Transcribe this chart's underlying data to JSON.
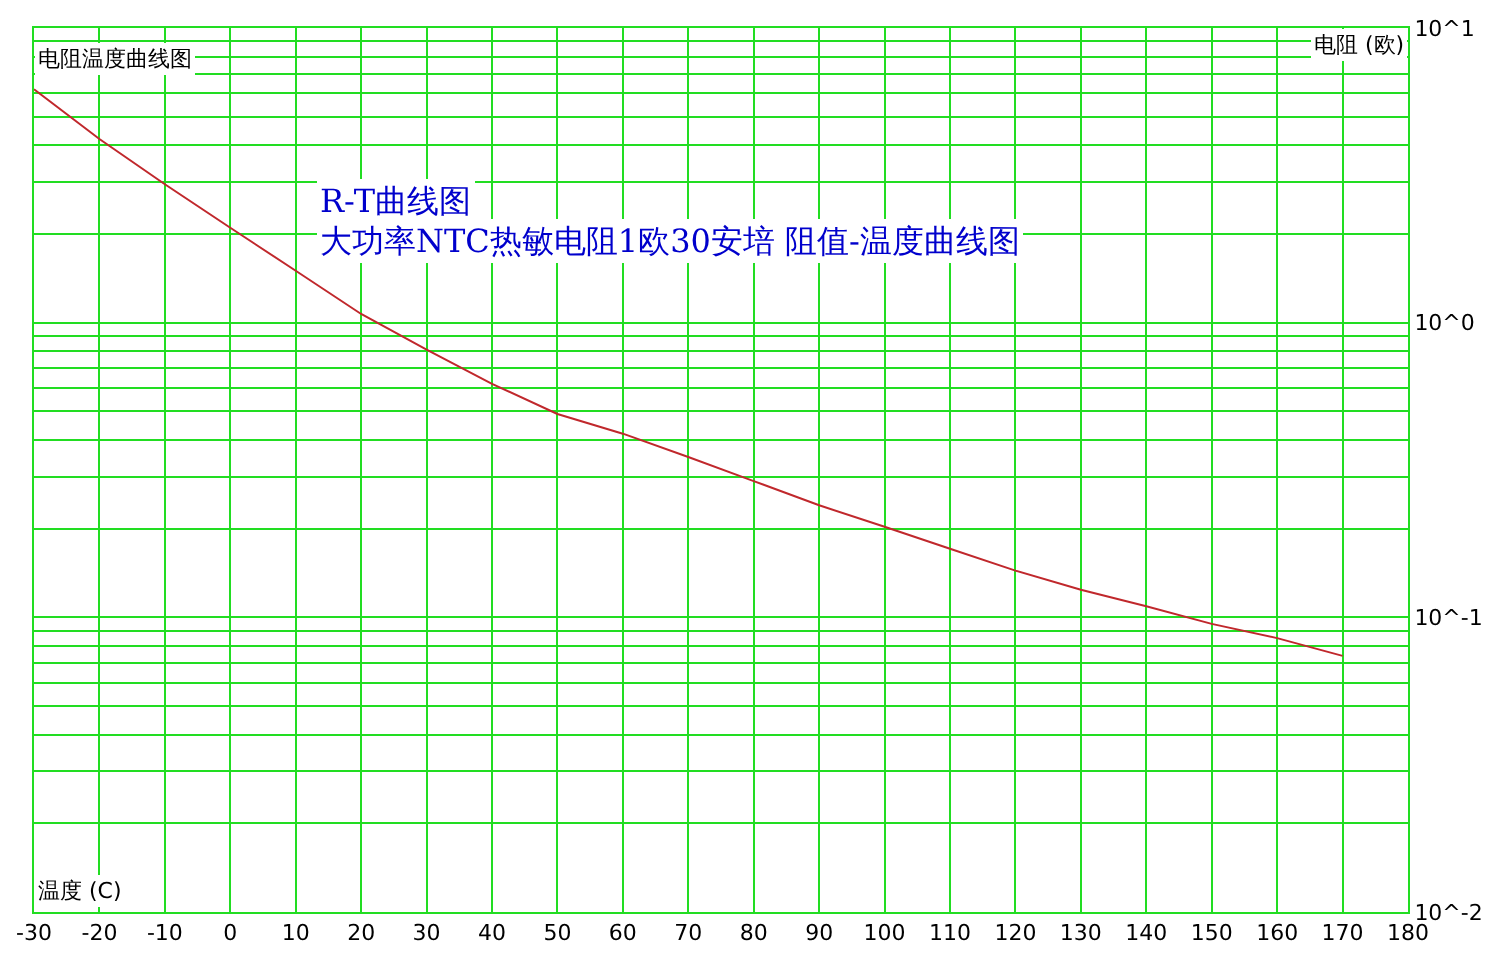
{
  "chart_data": {
    "type": "line",
    "title": "电阻温度曲线图",
    "xlabel": "温度 (C)",
    "ylabel": "电阻 (欧)",
    "annotations": [
      "R-T曲线图",
      "大功率NTC热敏电阻1欧30安培 阻值-温度曲线图"
    ],
    "x": [
      -30,
      -20,
      -10,
      0,
      10,
      20,
      30,
      40,
      50,
      60,
      70,
      80,
      90,
      100,
      110,
      120,
      130,
      140,
      150,
      160,
      170
    ],
    "series": [
      {
        "color": "#c0282c",
        "values": [
          6.2,
          4.2,
          2.95,
          2.1,
          1.5,
          1.07,
          0.81,
          0.62,
          0.49,
          0.42,
          0.35,
          0.29,
          0.24,
          0.203,
          0.171,
          0.144,
          0.124,
          0.109,
          0.095,
          0.085,
          0.074
        ]
      }
    ],
    "log": "y",
    "grid": true,
    "marker": "none",
    "line_style": "solid",
    "xlim": [
      -30,
      180
    ],
    "xticks": [
      -30,
      -20,
      -10,
      0,
      10,
      20,
      30,
      40,
      50,
      60,
      70,
      80,
      90,
      100,
      110,
      120,
      130,
      140,
      150,
      160,
      170,
      180
    ],
    "ylim": [
      0.01,
      10
    ],
    "yticks": [
      {
        "value": 10,
        "label": "10^1"
      },
      {
        "value": 1,
        "label": "10^0"
      },
      {
        "value": 0.1,
        "label": "10^-1"
      },
      {
        "value": 0.01,
        "label": "10^-2"
      }
    ]
  }
}
